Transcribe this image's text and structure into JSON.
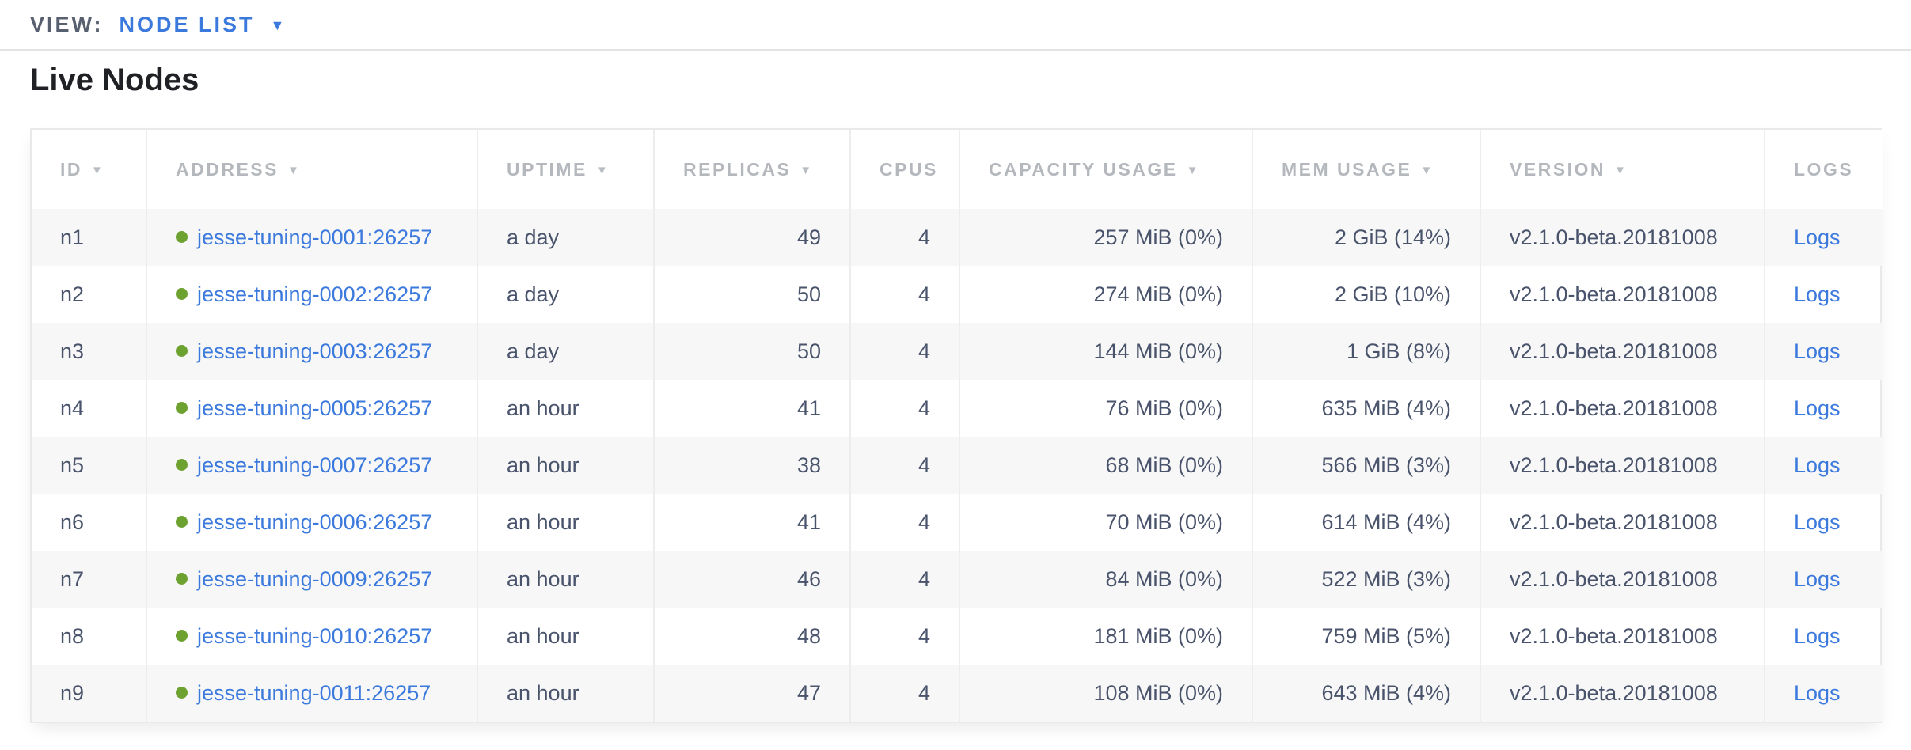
{
  "view_bar": {
    "label": "VIEW:",
    "selected": "NODE LIST"
  },
  "page": {
    "title": "Live Nodes"
  },
  "icons": {
    "sort_arrow": "▼",
    "caret_down": "▼",
    "live_status": "green-dot"
  },
  "colors": {
    "accent_blue": "#3b79dd",
    "live_green": "#6ea230",
    "header_text": "#b4b8bd",
    "cell_text": "#49536b",
    "row_stripe": "#f7f7f7",
    "border": "#ededed"
  },
  "table": {
    "columns": [
      {
        "key": "id",
        "label": "ID",
        "sortable": true,
        "numeric": false
      },
      {
        "key": "address",
        "label": "ADDRESS",
        "sortable": true,
        "numeric": false
      },
      {
        "key": "uptime",
        "label": "UPTIME",
        "sortable": true,
        "numeric": false
      },
      {
        "key": "replicas",
        "label": "REPLICAS",
        "sortable": true,
        "numeric": true
      },
      {
        "key": "cpus",
        "label": "CPUS",
        "sortable": false,
        "numeric": true
      },
      {
        "key": "capacity",
        "label": "CAPACITY USAGE",
        "sortable": true,
        "numeric": true
      },
      {
        "key": "mem",
        "label": "MEM USAGE",
        "sortable": true,
        "numeric": true
      },
      {
        "key": "version",
        "label": "VERSION",
        "sortable": true,
        "numeric": false
      },
      {
        "key": "logs",
        "label": "LOGS",
        "sortable": false,
        "numeric": false
      }
    ],
    "rows": [
      {
        "id": "n1",
        "status": "live",
        "address": "jesse-tuning-0001:26257",
        "uptime": "a day",
        "replicas": "49",
        "cpus": "4",
        "capacity": "257 MiB (0%)",
        "mem": "2 GiB (14%)",
        "version": "v2.1.0-beta.20181008",
        "logs": "Logs"
      },
      {
        "id": "n2",
        "status": "live",
        "address": "jesse-tuning-0002:26257",
        "uptime": "a day",
        "replicas": "50",
        "cpus": "4",
        "capacity": "274 MiB (0%)",
        "mem": "2 GiB (10%)",
        "version": "v2.1.0-beta.20181008",
        "logs": "Logs"
      },
      {
        "id": "n3",
        "status": "live",
        "address": "jesse-tuning-0003:26257",
        "uptime": "a day",
        "replicas": "50",
        "cpus": "4",
        "capacity": "144 MiB (0%)",
        "mem": "1 GiB (8%)",
        "version": "v2.1.0-beta.20181008",
        "logs": "Logs"
      },
      {
        "id": "n4",
        "status": "live",
        "address": "jesse-tuning-0005:26257",
        "uptime": "an hour",
        "replicas": "41",
        "cpus": "4",
        "capacity": "76 MiB (0%)",
        "mem": "635 MiB (4%)",
        "version": "v2.1.0-beta.20181008",
        "logs": "Logs"
      },
      {
        "id": "n5",
        "status": "live",
        "address": "jesse-tuning-0007:26257",
        "uptime": "an hour",
        "replicas": "38",
        "cpus": "4",
        "capacity": "68 MiB (0%)",
        "mem": "566 MiB (3%)",
        "version": "v2.1.0-beta.20181008",
        "logs": "Logs"
      },
      {
        "id": "n6",
        "status": "live",
        "address": "jesse-tuning-0006:26257",
        "uptime": "an hour",
        "replicas": "41",
        "cpus": "4",
        "capacity": "70 MiB (0%)",
        "mem": "614 MiB (4%)",
        "version": "v2.1.0-beta.20181008",
        "logs": "Logs"
      },
      {
        "id": "n7",
        "status": "live",
        "address": "jesse-tuning-0009:26257",
        "uptime": "an hour",
        "replicas": "46",
        "cpus": "4",
        "capacity": "84 MiB (0%)",
        "mem": "522 MiB (3%)",
        "version": "v2.1.0-beta.20181008",
        "logs": "Logs"
      },
      {
        "id": "n8",
        "status": "live",
        "address": "jesse-tuning-0010:26257",
        "uptime": "an hour",
        "replicas": "48",
        "cpus": "4",
        "capacity": "181 MiB (0%)",
        "mem": "759 MiB (5%)",
        "version": "v2.1.0-beta.20181008",
        "logs": "Logs"
      },
      {
        "id": "n9",
        "status": "live",
        "address": "jesse-tuning-0011:26257",
        "uptime": "an hour",
        "replicas": "47",
        "cpus": "4",
        "capacity": "108 MiB (0%)",
        "mem": "643 MiB (4%)",
        "version": "v2.1.0-beta.20181008",
        "logs": "Logs"
      }
    ]
  }
}
